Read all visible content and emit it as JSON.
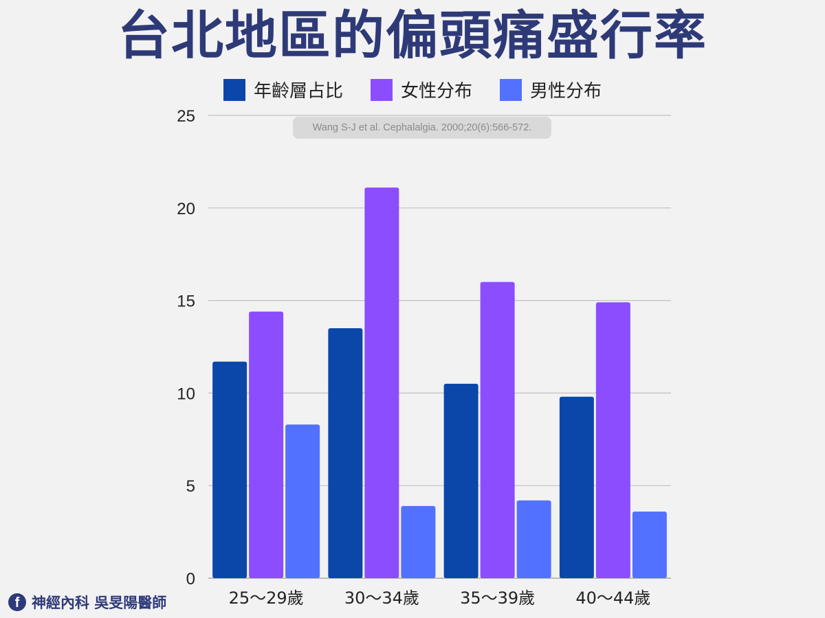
{
  "title": "台北地區的偏頭痛盛行率",
  "citation": "Wang S-J et al. Cephalalgia. 2000;20(6):566-572.",
  "footer": {
    "icon": "facebook-icon",
    "text": "神經內科 吳旻陽醫師"
  },
  "colors": {
    "title": "#2e3a78",
    "background": "#f2f2f2",
    "gridline": "#c0c0c0"
  },
  "chart_data": {
    "type": "bar",
    "title": "台北地區的偏頭痛盛行率",
    "xlabel": "",
    "ylabel": "",
    "ylim": [
      0,
      25
    ],
    "yticks": [
      "0",
      "5",
      "10",
      "15",
      "20",
      "25"
    ],
    "grid": true,
    "legend_position": "top",
    "categories": [
      "25～29歲",
      "30～34歲",
      "35～39歲",
      "40～44歲"
    ],
    "series": [
      {
        "name": "年齡層占比",
        "color": "#0a47a9",
        "values": [
          11.7,
          13.5,
          10.5,
          9.8
        ]
      },
      {
        "name": "女性分布",
        "color": "#8c4dff",
        "values": [
          14.4,
          21.1,
          16.0,
          14.9
        ]
      },
      {
        "name": "男性分布",
        "color": "#5271ff",
        "values": [
          8.3,
          3.9,
          4.2,
          3.6
        ]
      }
    ]
  }
}
